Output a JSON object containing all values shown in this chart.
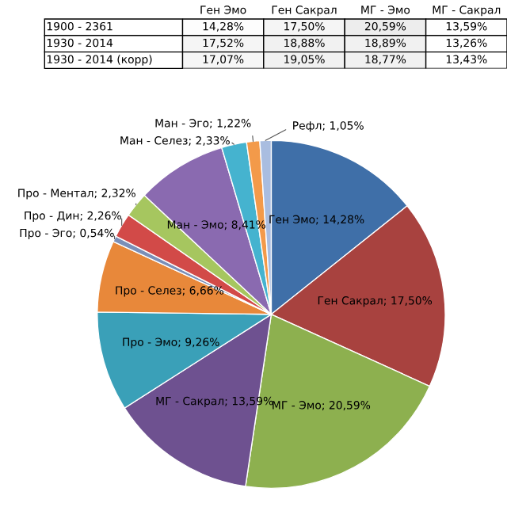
{
  "chart_data": [
    {
      "type": "heatmap",
      "categories": [
        "Ген Эмо",
        "Ген Сакрал",
        "МГ - Эмо",
        "МГ - Сакрал"
      ],
      "y_categories": [
        "1900 - 2361",
        "1930 - 2014",
        "1930 - 2014 (корр)"
      ],
      "cells": [
        [
          14.28,
          17.5,
          20.59,
          13.59
        ],
        [
          17.52,
          18.88,
          18.89,
          13.26
        ],
        [
          17.07,
          19.05,
          18.77,
          13.43
        ]
      ],
      "cell_labels": [
        [
          "14,28%",
          "17,50%",
          "20,59%",
          "13,59%"
        ],
        [
          "17,52%",
          "18,88%",
          "18,89%",
          "13,26%"
        ],
        [
          "17,07%",
          "19,05%",
          "18,77%",
          "13,43%"
        ]
      ]
    },
    {
      "type": "pie",
      "categories": [
        "Ген Эмо",
        "Ген Сакрал",
        "МГ - Эмо",
        "МГ - Сакрал",
        "Про - Эмо",
        "Про - Селез",
        "Про - Эго",
        "Про - Дин",
        "Про - Ментал",
        "Ман - Эмо",
        "Ман - Селез",
        "Ман - Эго",
        "Рефл"
      ],
      "values": [
        14.28,
        17.5,
        20.59,
        13.59,
        9.26,
        6.66,
        0.54,
        2.26,
        2.32,
        8.41,
        2.33,
        1.22,
        1.05
      ],
      "value_labels": [
        "14,28%",
        "17,50%",
        "20,59%",
        "13,59%",
        "9,26%",
        "6,66%",
        "0,54%",
        "2,26%",
        "2,32%",
        "8,41%",
        "2,33%",
        "1,22%",
        "1,05%"
      ],
      "legend": false,
      "colors": [
        "#3f6fa8",
        "#a8423f",
        "#8db04f",
        "#6e5190",
        "#3aa0b8",
        "#e8883a",
        "#7a8fb8",
        "#d24a48",
        "#a6c65f",
        "#8a6ab0",
        "#45b3cf",
        "#f39a4a",
        "#a9bde0"
      ]
    }
  ]
}
